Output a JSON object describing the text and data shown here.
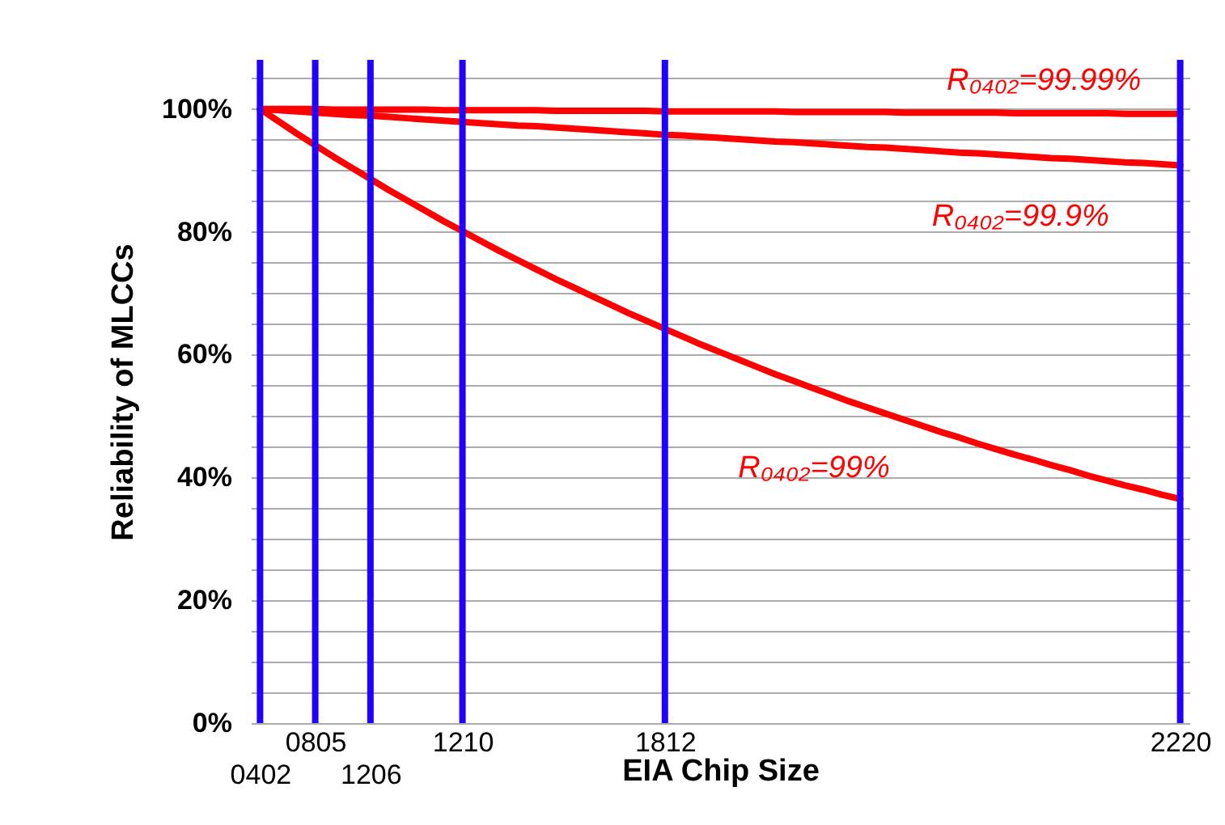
{
  "chart_data": {
    "type": "line",
    "xlabel": "EIA Chip Size",
    "ylabel": "Reliability of MLCCs",
    "categories": [
      "0402",
      null,
      null,
      "0805",
      null,
      null,
      "1206",
      null,
      null,
      null,
      null,
      "1210",
      null,
      null,
      null,
      null,
      null,
      null,
      null,
      null,
      null,
      null,
      "1812",
      null,
      null,
      null,
      null,
      null,
      null,
      null,
      null,
      null,
      null,
      null,
      null,
      null,
      null,
      null,
      null,
      null,
      null,
      null,
      null,
      null,
      null,
      null,
      null,
      null,
      null,
      null,
      "2220"
    ],
    "ylim": [
      0,
      108
    ],
    "yticks": [
      {
        "value": 0,
        "label": "0%"
      },
      {
        "value": 5,
        "label": null
      },
      {
        "value": 10,
        "label": null
      },
      {
        "value": 15,
        "label": null
      },
      {
        "value": 20,
        "label": "20%"
      },
      {
        "value": 25,
        "label": null
      },
      {
        "value": 30,
        "label": null
      },
      {
        "value": 35,
        "label": null
      },
      {
        "value": 40,
        "label": "40%"
      },
      {
        "value": 45,
        "label": null
      },
      {
        "value": 50,
        "label": null
      },
      {
        "value": 55,
        "label": null
      },
      {
        "value": 60,
        "label": "60%"
      },
      {
        "value": 65,
        "label": null
      },
      {
        "value": 70,
        "label": null
      },
      {
        "value": 75,
        "label": null
      },
      {
        "value": 80,
        "label": "80%"
      },
      {
        "value": 85,
        "label": null
      },
      {
        "value": 90,
        "label": null
      },
      {
        "value": 95,
        "label": null
      },
      {
        "value": 100,
        "label": "100%"
      },
      {
        "value": 105,
        "label": null
      }
    ],
    "grid": "y",
    "line_style": "solid",
    "marker": "none",
    "series": [
      {
        "name": "R₀₄₀₂=99.99%",
        "color": "#ff0000",
        "values": [
          100,
          100,
          100,
          100,
          99.9,
          99.9,
          99.9,
          99.9,
          99.9,
          99.9,
          99.8,
          99.8,
          99.8,
          99.8,
          99.8,
          99.8,
          99.7,
          99.7,
          99.7,
          99.7,
          99.7,
          99.7,
          99.6,
          99.6,
          99.6,
          99.6,
          99.6,
          99.6,
          99.6,
          99.5,
          99.5,
          99.5,
          99.5,
          99.5,
          99.5,
          99.4,
          99.4,
          99.4,
          99.4,
          99.4,
          99.4,
          99.3,
          99.3,
          99.3,
          99.3,
          99.3,
          99.3,
          99.2,
          99.2,
          99.2,
          99.2
        ]
      },
      {
        "name": "R₀₄₀₂=99.9%",
        "color": "#ff0000",
        "values": [
          100,
          99.8,
          99.6,
          99.4,
          99.2,
          99.0,
          98.9,
          98.7,
          98.5,
          98.3,
          98.1,
          97.9,
          97.7,
          97.5,
          97.3,
          97.2,
          97.0,
          96.8,
          96.6,
          96.4,
          96.2,
          96.0,
          95.8,
          95.7,
          95.5,
          95.3,
          95.1,
          94.9,
          94.7,
          94.6,
          94.4,
          94.2,
          94.0,
          93.8,
          93.7,
          93.5,
          93.3,
          93.1,
          92.9,
          92.8,
          92.6,
          92.4,
          92.2,
          92.0,
          91.9,
          91.7,
          91.5,
          91.3,
          91.2,
          91.0,
          90.8
        ]
      },
      {
        "name": "R₀₄₀₂=99%",
        "color": "#ff0000",
        "values": [
          100,
          98.0,
          96.0,
          94.1,
          92.2,
          90.4,
          88.6,
          86.8,
          85.1,
          83.4,
          81.7,
          80.1,
          78.5,
          76.9,
          75.4,
          73.9,
          72.4,
          71.0,
          69.6,
          68.2,
          66.8,
          65.5,
          64.2,
          62.9,
          61.6,
          60.4,
          59.2,
          58.0,
          56.8,
          55.7,
          54.6,
          53.5,
          52.4,
          51.4,
          50.4,
          49.4,
          48.4,
          47.4,
          46.5,
          45.5,
          44.6,
          43.7,
          42.9,
          42.0,
          41.2,
          40.3,
          39.5,
          38.7,
          38.0,
          37.2,
          36.5
        ]
      }
    ],
    "ref_lines": [
      {
        "axis": "x",
        "value": "0402",
        "label": null,
        "color": "#2200ff"
      },
      {
        "axis": "x",
        "value": "0805",
        "label": null,
        "color": "#2200ff"
      },
      {
        "axis": "x",
        "value": "1206",
        "label": null,
        "color": "#2200ff"
      },
      {
        "axis": "x",
        "value": "1210",
        "label": null,
        "color": "#2200ff"
      },
      {
        "axis": "x",
        "value": "1812",
        "label": null,
        "color": "#2200ff"
      },
      {
        "axis": "x",
        "value": "2220",
        "label": null,
        "color": "#2200ff"
      }
    ]
  }
}
